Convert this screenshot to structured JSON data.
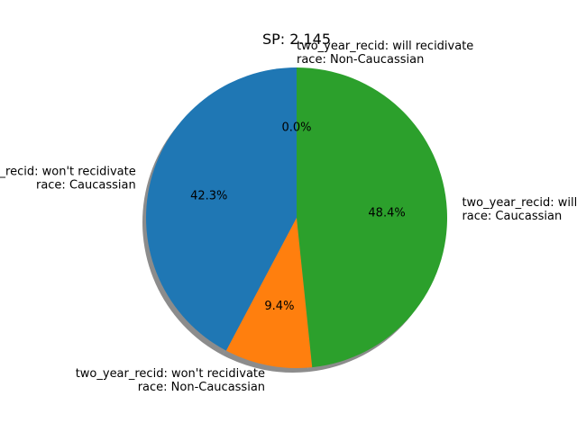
{
  "chart_data": {
    "type": "pie",
    "title": "SP: 2.145",
    "slices": [
      {
        "label_lines": [
          "two_year_recid: won't recidivate",
          "race: Caucassian"
        ],
        "value": 42.3,
        "pct_label": "42.3%",
        "color": "#1f77b4"
      },
      {
        "label_lines": [
          "two_year_recid: won't recidivate",
          "race: Non-Caucassian"
        ],
        "value": 9.4,
        "pct_label": "9.4%",
        "color": "#ff7f0e"
      },
      {
        "label_lines": [
          "two_year_recid: will recidivate",
          "race: Caucassian"
        ],
        "value": 48.4,
        "pct_label": "48.4%",
        "color": "#2ca02c"
      },
      {
        "label_lines": [
          "two_year_recid: will recidivate",
          "race: Non-Caucassian"
        ],
        "value": 0.0,
        "pct_label": "0.0%",
        "color": "#d62728"
      }
    ],
    "start_angle": "90 (top)",
    "direction": "counterclockwise",
    "shadow": true,
    "legend": "none",
    "grid": false
  }
}
